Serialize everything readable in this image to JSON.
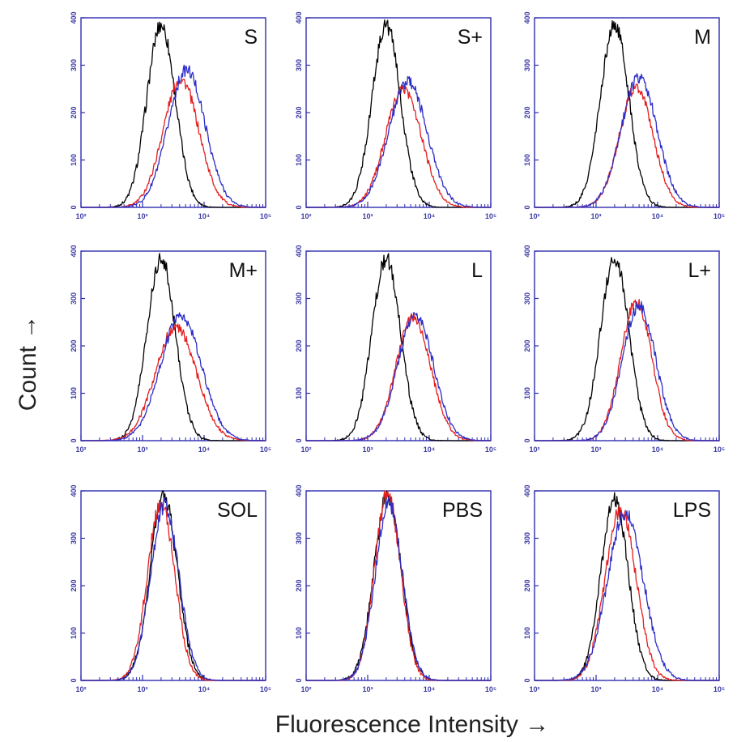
{
  "figure": {
    "ylabel": "Count →",
    "xlabel": "Fluorescence Intensity →"
  },
  "colors": {
    "axis": "#2e2eb0",
    "control": "#000000",
    "red_series": "#e41e1e",
    "blue_series": "#2d2dc8"
  },
  "chart_data": [
    {
      "type": "line",
      "panel": "S",
      "xscale": "log",
      "xlim": [
        100,
        100000
      ],
      "ylim": [
        0,
        400
      ],
      "xticks": [
        "10²",
        "10³",
        "10⁴",
        "10⁵"
      ],
      "yticks": [
        "0",
        "100",
        "200",
        "300",
        "400"
      ],
      "grid": false,
      "series": [
        {
          "color": "#000000",
          "peak_x": 2000,
          "peak_y": 385,
          "width": 0.23
        },
        {
          "color": "#e41e1e",
          "peak_x": 4200,
          "peak_y": 270,
          "width": 0.29
        },
        {
          "color": "#2d2dc8",
          "peak_x": 5200,
          "peak_y": 290,
          "width": 0.3
        }
      ]
    },
    {
      "type": "line",
      "panel": "S+",
      "xscale": "log",
      "xlim": [
        100,
        100000
      ],
      "ylim": [
        0,
        400
      ],
      "xticks": [
        "10²",
        "10³",
        "10⁴",
        "10⁵"
      ],
      "yticks": [
        "0",
        "100",
        "200",
        "300",
        "400"
      ],
      "grid": false,
      "series": [
        {
          "color": "#000000",
          "peak_x": 2000,
          "peak_y": 385,
          "width": 0.23
        },
        {
          "color": "#e41e1e",
          "peak_x": 3800,
          "peak_y": 250,
          "width": 0.29
        },
        {
          "color": "#2d2dc8",
          "peak_x": 4500,
          "peak_y": 265,
          "width": 0.31
        }
      ]
    },
    {
      "type": "line",
      "panel": "M",
      "xscale": "log",
      "xlim": [
        100,
        100000
      ],
      "ylim": [
        0,
        400
      ],
      "xticks": [
        "10²",
        "10³",
        "10⁴",
        "10⁵"
      ],
      "yticks": [
        "0",
        "100",
        "200",
        "300",
        "400"
      ],
      "grid": false,
      "series": [
        {
          "color": "#000000",
          "peak_x": 2000,
          "peak_y": 385,
          "width": 0.23
        },
        {
          "color": "#e41e1e",
          "peak_x": 4500,
          "peak_y": 255,
          "width": 0.27
        },
        {
          "color": "#2d2dc8",
          "peak_x": 5000,
          "peak_y": 275,
          "width": 0.29
        }
      ]
    },
    {
      "type": "line",
      "panel": "M+",
      "xscale": "log",
      "xlim": [
        100,
        100000
      ],
      "ylim": [
        0,
        400
      ],
      "xticks": [
        "10²",
        "10³",
        "10⁴",
        "10⁵"
      ],
      "yticks": [
        "0",
        "100",
        "200",
        "300",
        "400"
      ],
      "grid": false,
      "series": [
        {
          "color": "#000000",
          "peak_x": 2000,
          "peak_y": 385,
          "width": 0.23
        },
        {
          "color": "#e41e1e",
          "peak_x": 3500,
          "peak_y": 240,
          "width": 0.33
        },
        {
          "color": "#2d2dc8",
          "peak_x": 4200,
          "peak_y": 265,
          "width": 0.33
        }
      ]
    },
    {
      "type": "line",
      "panel": "L",
      "xscale": "log",
      "xlim": [
        100,
        100000
      ],
      "ylim": [
        0,
        400
      ],
      "xticks": [
        "10²",
        "10³",
        "10⁴",
        "10⁵"
      ],
      "yticks": [
        "0",
        "100",
        "200",
        "300",
        "400"
      ],
      "grid": false,
      "series": [
        {
          "color": "#000000",
          "peak_x": 2000,
          "peak_y": 385,
          "width": 0.23
        },
        {
          "color": "#e41e1e",
          "peak_x": 5500,
          "peak_y": 260,
          "width": 0.28
        },
        {
          "color": "#2d2dc8",
          "peak_x": 6000,
          "peak_y": 265,
          "width": 0.29
        }
      ]
    },
    {
      "type": "line",
      "panel": "L+",
      "xscale": "log",
      "xlim": [
        100,
        100000
      ],
      "ylim": [
        0,
        400
      ],
      "xticks": [
        "10²",
        "10³",
        "10⁴",
        "10⁵"
      ],
      "yticks": [
        "0",
        "100",
        "200",
        "300",
        "400"
      ],
      "grid": false,
      "series": [
        {
          "color": "#000000",
          "peak_x": 2000,
          "peak_y": 385,
          "width": 0.23
        },
        {
          "color": "#e41e1e",
          "peak_x": 4500,
          "peak_y": 295,
          "width": 0.25
        },
        {
          "color": "#2d2dc8",
          "peak_x": 5000,
          "peak_y": 285,
          "width": 0.27
        }
      ]
    },
    {
      "type": "line",
      "panel": "SOL",
      "xscale": "log",
      "xlim": [
        100,
        100000
      ],
      "ylim": [
        0,
        400
      ],
      "xticks": [
        "10²",
        "10³",
        "10⁴",
        "10⁵"
      ],
      "yticks": [
        "0",
        "100",
        "200",
        "300",
        "400"
      ],
      "grid": false,
      "series": [
        {
          "color": "#000000",
          "peak_x": 2200,
          "peak_y": 390,
          "width": 0.22
        },
        {
          "color": "#e41e1e",
          "peak_x": 2000,
          "peak_y": 375,
          "width": 0.22
        },
        {
          "color": "#2d2dc8",
          "peak_x": 2300,
          "peak_y": 370,
          "width": 0.23
        }
      ]
    },
    {
      "type": "line",
      "panel": "PBS",
      "xscale": "log",
      "xlim": [
        100,
        100000
      ],
      "ylim": [
        0,
        400
      ],
      "xticks": [
        "10²",
        "10³",
        "10⁴",
        "10⁵"
      ],
      "yticks": [
        "0",
        "100",
        "200",
        "300",
        "400"
      ],
      "grid": false,
      "series": [
        {
          "color": "#000000",
          "peak_x": 2100,
          "peak_y": 390,
          "width": 0.22
        },
        {
          "color": "#e41e1e",
          "peak_x": 2100,
          "peak_y": 395,
          "width": 0.21
        },
        {
          "color": "#2d2dc8",
          "peak_x": 2200,
          "peak_y": 375,
          "width": 0.22
        }
      ]
    },
    {
      "type": "line",
      "panel": "LPS",
      "xscale": "log",
      "xlim": [
        100,
        100000
      ],
      "ylim": [
        0,
        400
      ],
      "xticks": [
        "10²",
        "10³",
        "10⁴",
        "10⁵"
      ],
      "yticks": [
        "0",
        "100",
        "200",
        "300",
        "400"
      ],
      "grid": false,
      "series": [
        {
          "color": "#000000",
          "peak_x": 2000,
          "peak_y": 385,
          "width": 0.22
        },
        {
          "color": "#e41e1e",
          "peak_x": 2500,
          "peak_y": 360,
          "width": 0.25
        },
        {
          "color": "#2d2dc8",
          "peak_x": 3000,
          "peak_y": 355,
          "width": 0.29
        }
      ]
    }
  ]
}
